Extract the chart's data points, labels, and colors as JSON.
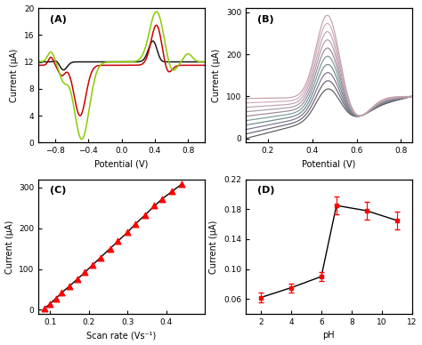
{
  "figsize": [
    4.74,
    3.88
  ],
  "dpi": 100,
  "panel_A": {
    "label": "(A)",
    "ylabel": "Current (μA)",
    "xlabel": "Potential (V)",
    "xlim": [
      -1.0,
      1.0
    ],
    "ylim": [
      0,
      20
    ],
    "yticks": [
      0,
      4,
      8,
      12,
      16,
      20
    ],
    "xticks": [
      -0.8,
      -0.4,
      0,
      0.4,
      0.8
    ]
  },
  "panel_B": {
    "label": "(B)",
    "ylabel": "Current (μA)",
    "xlabel": "Potential (V)",
    "xlim": [
      0.1,
      0.85
    ],
    "ylim": [
      -10,
      310
    ],
    "yticks": [
      0,
      100,
      200,
      300
    ],
    "xticks": [
      0.2,
      0.4,
      0.6,
      0.8
    ],
    "n_curves": 10
  },
  "panel_C": {
    "label": "(C)",
    "ylabel": "Current (μA)",
    "xlabel": "Scan rate (Vs⁻¹)",
    "xlim": [
      0.07,
      0.5
    ],
    "ylim": [
      -10,
      320
    ],
    "yticks": [
      0,
      100,
      200,
      300
    ],
    "xticks": [
      0.1,
      0.2,
      0.3,
      0.4
    ],
    "x_data": [
      0.085,
      0.1,
      0.115,
      0.13,
      0.15,
      0.17,
      0.19,
      0.21,
      0.23,
      0.255,
      0.275,
      0.3,
      0.32,
      0.345,
      0.37,
      0.39,
      0.415,
      0.44
    ],
    "y_data": [
      3,
      15,
      28,
      42,
      58,
      75,
      92,
      110,
      128,
      150,
      168,
      190,
      210,
      232,
      255,
      272,
      290,
      308
    ],
    "line_color": "#000000",
    "marker_color": "#ff0000"
  },
  "panel_D": {
    "label": "(D)",
    "ylabel": "Current (μA)",
    "xlabel": "pH",
    "xlim": [
      1,
      12
    ],
    "ylim": [
      0.04,
      0.22
    ],
    "yticks": [
      0.06,
      0.1,
      0.14,
      0.18,
      0.22
    ],
    "xticks": [
      2,
      4,
      6,
      8,
      10,
      12
    ],
    "x_data": [
      2,
      4,
      6,
      7,
      9,
      11
    ],
    "y_data": [
      0.062,
      0.075,
      0.09,
      0.185,
      0.178,
      0.165
    ],
    "y_err": [
      0.006,
      0.006,
      0.006,
      0.012,
      0.012,
      0.012
    ],
    "line_color": "#000000",
    "marker_color": "#ff0000"
  }
}
